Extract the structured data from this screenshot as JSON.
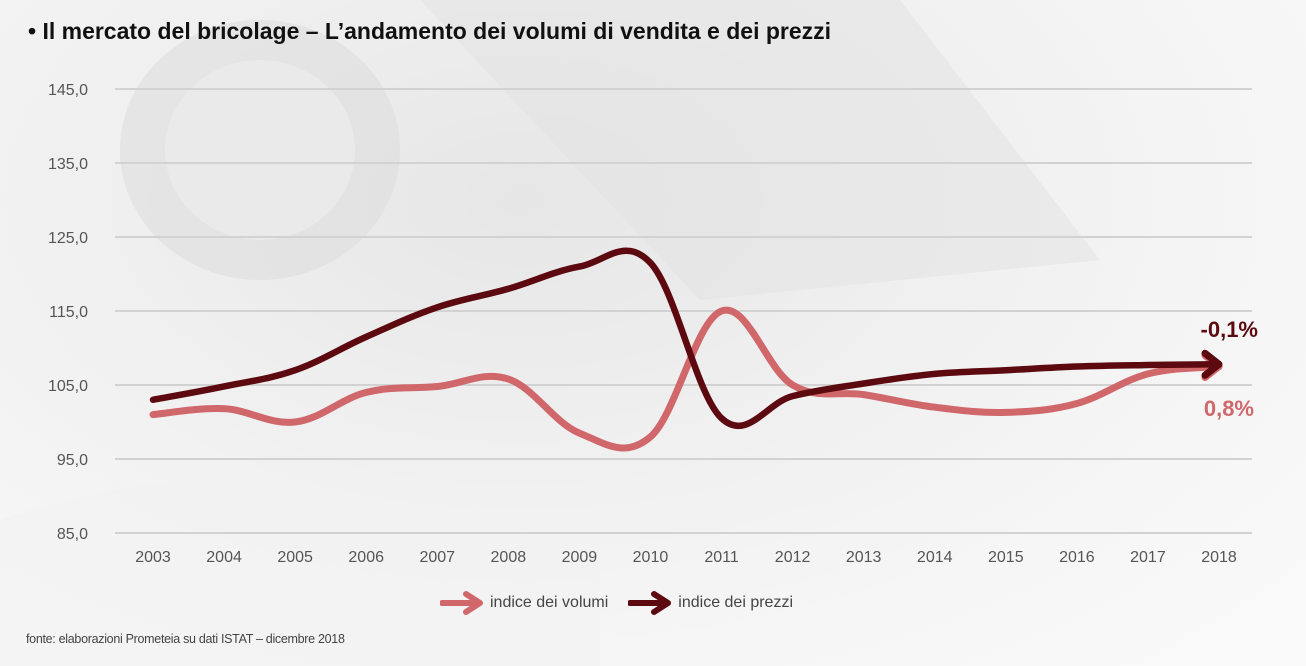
{
  "title": "• Il mercato del bricolage – L’andamento dei volumi di vendita e dei prezzi",
  "source": "fonte: elaborazioni Prometeia su dati ISTAT – dicembre 2018",
  "colors": {
    "volumi": "#d0676b",
    "prezzi": "#5c0a10"
  },
  "chart_data": {
    "type": "line",
    "title": "Il mercato del bricolage – L’andamento dei volumi di vendita e dei prezzi",
    "xlabel": "",
    "ylabel": "",
    "ylim": [
      85,
      145
    ],
    "grid": true,
    "legend_position": "bottom-center",
    "y_ticks": [
      "145,0",
      "135,0",
      "125,0",
      "115,0",
      "105,0",
      "95,0",
      "85,0"
    ],
    "y_tick_values": [
      145,
      135,
      125,
      115,
      105,
      95,
      85
    ],
    "categories": [
      "2003",
      "2004",
      "2005",
      "2006",
      "2007",
      "2008",
      "2009",
      "2010",
      "2011",
      "2012",
      "2013",
      "2014",
      "2015",
      "2016",
      "2017",
      "2018"
    ],
    "series": [
      {
        "name": "indice dei volumi",
        "key": "volumi",
        "values": [
          101.0,
          101.8,
          100.0,
          104.0,
          104.8,
          105.8,
          98.5,
          98.0,
          115.0,
          105.0,
          103.7,
          102.0,
          101.3,
          102.5,
          106.5,
          107.5
        ]
      },
      {
        "name": "indice dei prezzi",
        "key": "prezzi",
        "values": [
          103.0,
          104.8,
          107.0,
          111.5,
          115.5,
          118.0,
          121.0,
          121.5,
          100.5,
          103.5,
          105.2,
          106.5,
          107.0,
          107.5,
          107.7,
          107.8
        ]
      }
    ],
    "annotations": [
      {
        "text": "-0,1%",
        "series": "prezzi"
      },
      {
        "text": "0,8%",
        "series": "volumi"
      }
    ]
  }
}
